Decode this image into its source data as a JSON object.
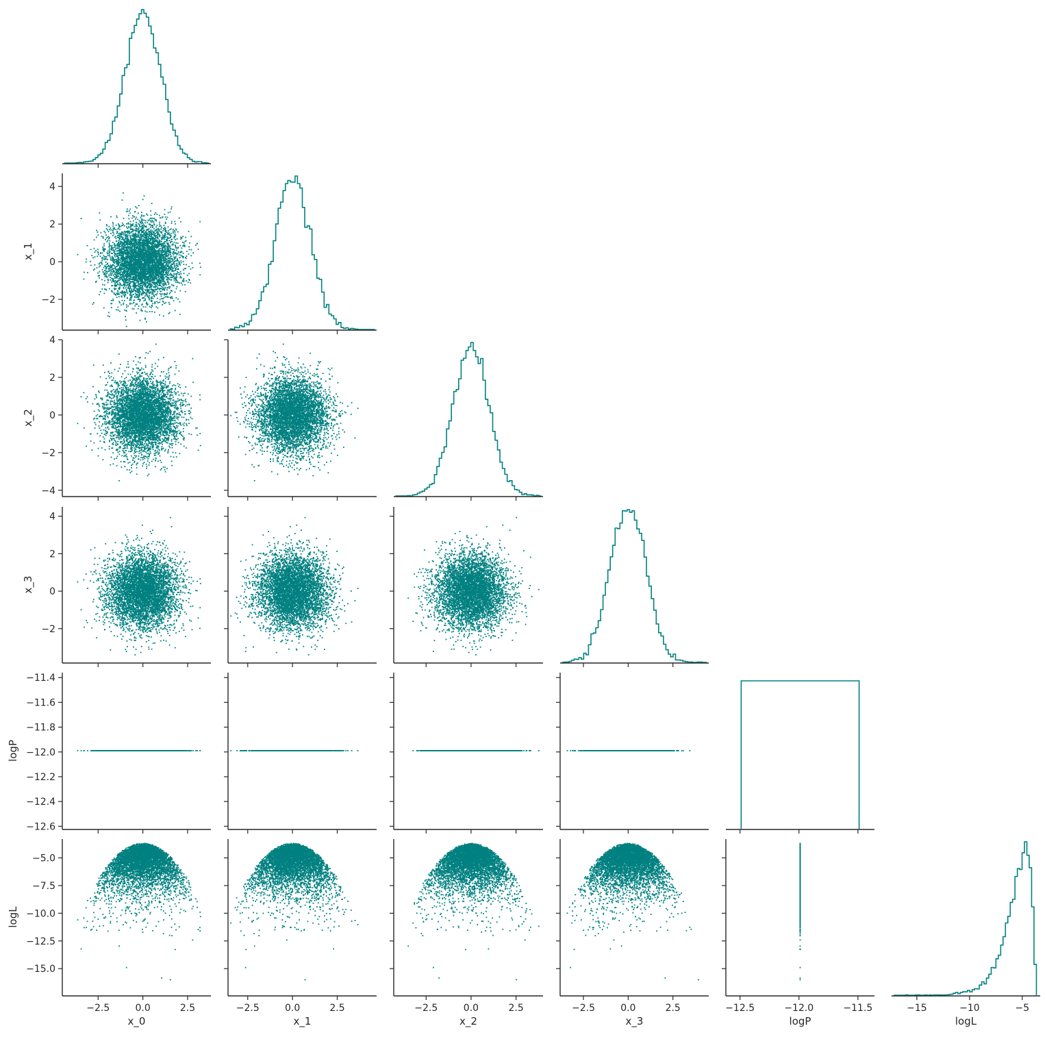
{
  "chart_data": {
    "type": "scatter",
    "layout": "corner-pairplot",
    "color": "#008080",
    "variables": [
      {
        "name": "x_0",
        "range": [
          -4.5,
          3.8
        ],
        "mean": 0.0,
        "sd": 1.0,
        "xticks": [
          -2.5,
          0.0,
          2.5
        ],
        "xtick_labels": [
          "−2.5",
          "0.0",
          "2.5"
        ],
        "yticks": [],
        "ytick_labels": [],
        "hist_peak": 1.0
      },
      {
        "name": "x_1",
        "range": [
          -3.6,
          4.7
        ],
        "mean": 0.0,
        "sd": 1.0,
        "xticks": [
          -2.5,
          0.0,
          2.5
        ],
        "xtick_labels": [
          "−2.5",
          "0.0",
          "2.5"
        ],
        "yticks": [
          -2,
          0,
          2,
          4
        ],
        "ytick_labels": [
          "−2",
          "0",
          "2",
          "4"
        ],
        "hist_peak": 1.0
      },
      {
        "name": "x_2",
        "range": [
          -4.3,
          4.0
        ],
        "mean": 0.0,
        "sd": 1.0,
        "xticks": [
          -2.5,
          0.0,
          2.5
        ],
        "xtick_labels": [
          "−2.5",
          "0.0",
          "2.5"
        ],
        "yticks": [
          -4,
          -2,
          0,
          2,
          4
        ],
        "ytick_labels": [
          "−4",
          "−2",
          "0",
          "2",
          "4"
        ],
        "hist_peak": 1.0
      },
      {
        "name": "x_3",
        "range": [
          -3.8,
          4.5
        ],
        "mean": 0.0,
        "sd": 1.0,
        "xticks": [
          -2.5,
          0.0,
          2.5
        ],
        "xtick_labels": [
          "−2.5",
          "0.0",
          "2.5"
        ],
        "yticks": [
          -2,
          0,
          2,
          4
        ],
        "ytick_labels": [
          "−2",
          "0",
          "2",
          "4"
        ],
        "hist_peak": 1.0
      },
      {
        "name": "logP",
        "range": [
          -12.62,
          -11.36
        ],
        "constant": -11.99,
        "xticks": [
          -12.5,
          -12.0,
          -11.5
        ],
        "xtick_labels": [
          "−12.5",
          "−12.0",
          "−11.5"
        ],
        "yticks": [
          -12.6,
          -12.4,
          -12.2,
          -12.0,
          -11.8,
          -11.6,
          -11.4
        ],
        "ytick_labels": [
          "−12.6",
          "−12.4",
          "−12.2",
          "−12.0",
          "−11.8",
          "−11.6",
          "−11.4"
        ],
        "hist_range": [
          -12.49,
          -11.49
        ]
      },
      {
        "name": "logL",
        "range": [
          -17.4,
          -3.3
        ],
        "max": -3.68,
        "xticks": [
          -15,
          -10,
          -5
        ],
        "xtick_labels": [
          "−15",
          "−10",
          "−5"
        ],
        "yticks": [
          -15.0,
          -12.5,
          -10.0,
          -7.5,
          -5.0
        ],
        "ytick_labels": [
          "−15.0",
          "−12.5",
          "−10.0",
          "−7.5",
          "−5.0"
        ]
      }
    ],
    "diagonal": "step histogram",
    "off_diagonal": "scatter",
    "n_points": 10000,
    "grid": false,
    "legend": "none"
  }
}
